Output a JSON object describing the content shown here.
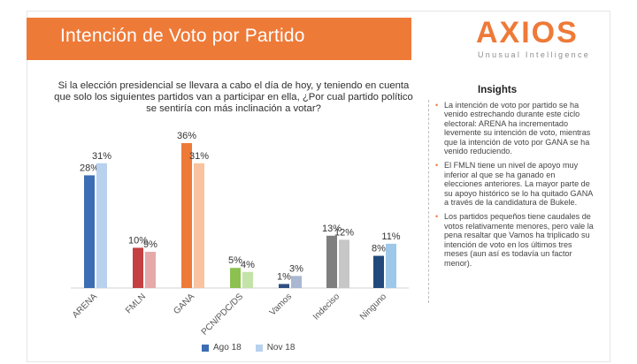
{
  "title": "Intención de Voto por Partido",
  "logo": {
    "name": "AXIOS",
    "tagline": "Unusual Intelligence"
  },
  "question": "Si la elección presidencial se llevara a cabo el día de hoy, y teniendo en cuenta que solo los siguientes partidos van a participar en ella, ¿Por cual partido político se sentiría con más inclinación a votar?",
  "insights": {
    "title": "Insights",
    "items": [
      "La intención de voto por partido se ha venido estrechando durante este ciclo electoral: ARENA ha incrementado levemente su intención de voto, mientras que la intención de voto por GANA se ha venido reduciendo.",
      "El FMLN tiene un nivel de apoyo muy inferior al que se ha ganado en elecciones anteriores. La mayor parte de su apoyo histórico se lo ha quitado GANA a través de la candidatura de Bukele.",
      "Los partidos pequeños tiene caudales de votos relativamente menores, pero vale la pena resaltar que Vamos ha triplicado su intención de voto en los últimos tres meses (aun así es todavía un factor menor)."
    ]
  },
  "chart_data": {
    "type": "bar",
    "categories": [
      "ARENA",
      "FMLN",
      "GANA",
      "PCN/PDC/DS",
      "Vamos",
      "Indeciso",
      "Ninguno"
    ],
    "series": [
      {
        "name": "Ago 18",
        "values": [
          28,
          10,
          36,
          5,
          1,
          13,
          8
        ]
      },
      {
        "name": "Nov 18",
        "values": [
          31,
          9,
          31,
          4,
          3,
          12,
          11
        ]
      }
    ],
    "value_suffix": "%",
    "ylim": [
      0,
      40
    ],
    "grid": false,
    "legend_position": "bottom",
    "colors": {
      "Ago 18": [
        "#3d6db3",
        "#c44042",
        "#ee7a38",
        "#8cc152",
        "#2f4f82",
        "#7f7f7f",
        "#22497c"
      ],
      "Nov 18": [
        "#b7d1ef",
        "#e6a9a9",
        "#f8c39e",
        "#c3e3a8",
        "#a9b7d1",
        "#c7c7c7",
        "#9ec8ea"
      ]
    },
    "legend_colors": {
      "Ago 18": "#3d6db3",
      "Nov 18": "#b7d1ef"
    }
  }
}
